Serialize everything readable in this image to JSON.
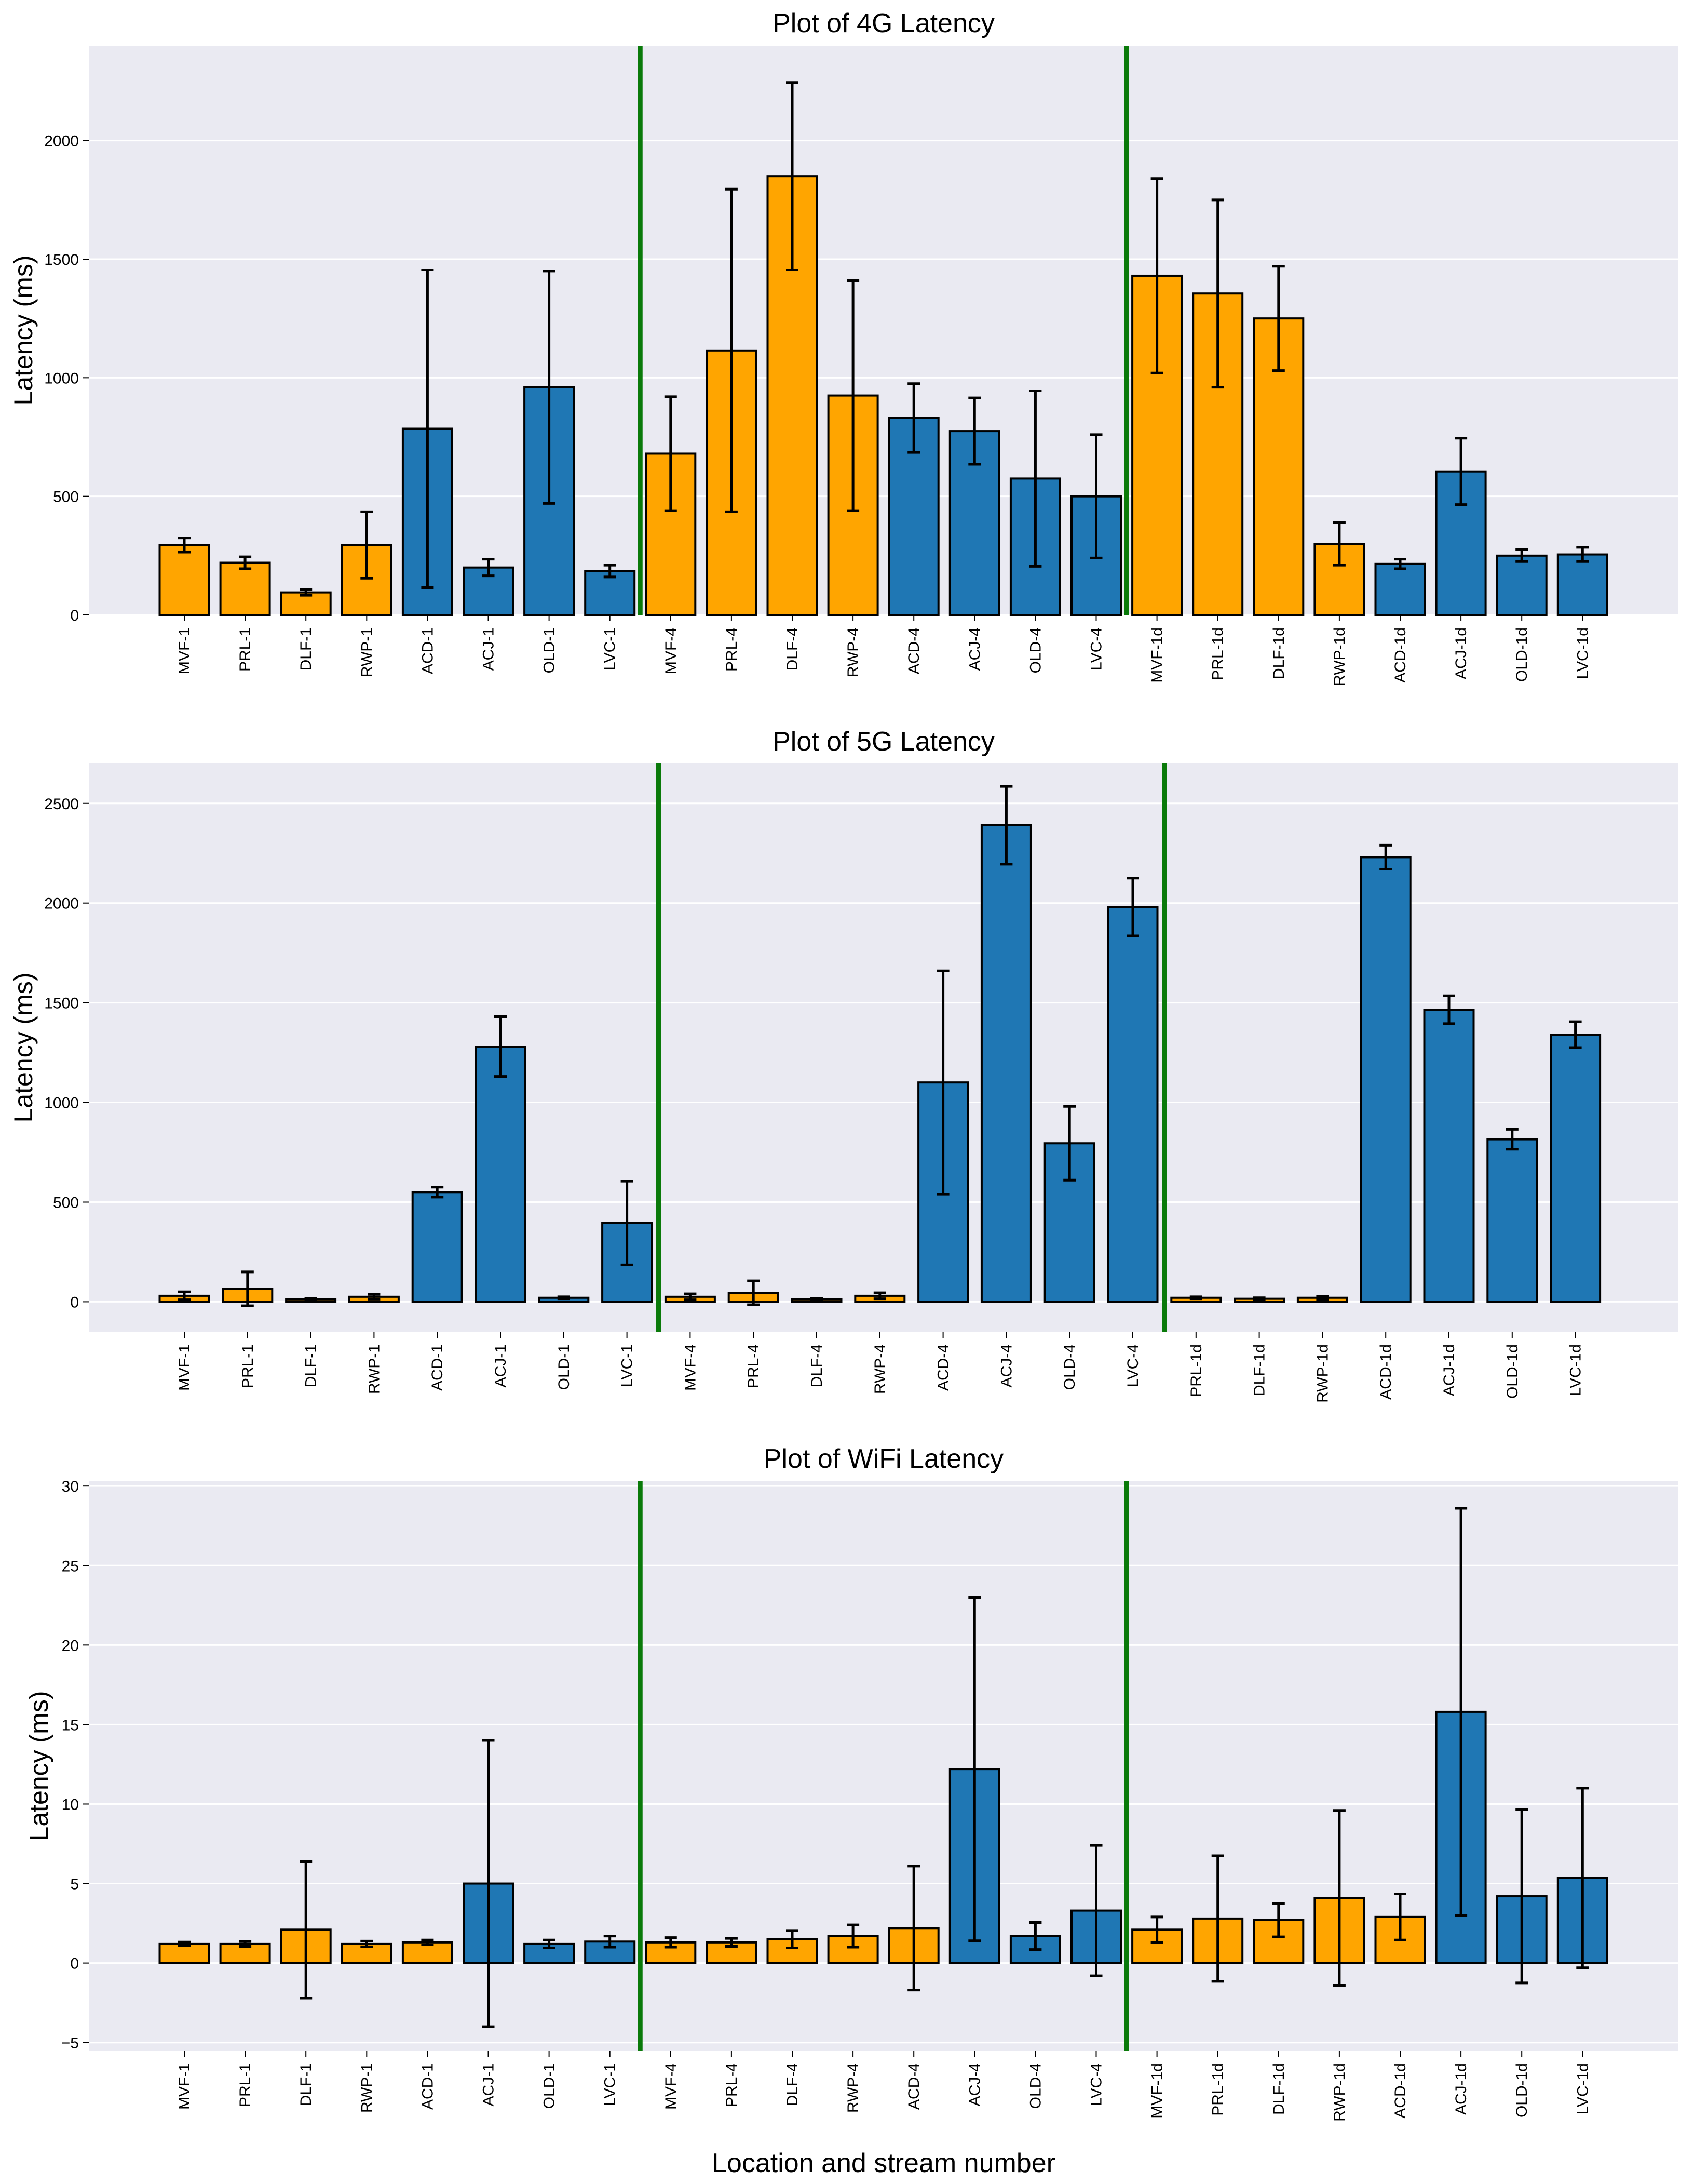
{
  "figure": {
    "xlabel": "Location and stream number"
  },
  "colors": {
    "orange": "#FFA500",
    "blue": "#1F77B4",
    "divider": "#0A7A0A",
    "panel_bg": "#EAEAF2",
    "grid": "#FFFFFF"
  },
  "chart_data": [
    {
      "type": "bar",
      "title": "Plot of 4G Latency",
      "ylabel": "Latency (ms)",
      "ylim": [
        0,
        2400
      ],
      "yticks": [
        0,
        500,
        1000,
        1500,
        2000
      ],
      "ytick_labels": [
        "0",
        "500",
        "1000",
        "1500",
        "2000"
      ],
      "dividers_after_index": [
        7,
        15
      ],
      "categories": [
        "MVF-1",
        "PRL-1",
        "DLF-1",
        "RWP-1",
        "ACD-1",
        "ACJ-1",
        "OLD-1",
        "LVC-1",
        "MVF-4",
        "PRL-4",
        "DLF-4",
        "RWP-4",
        "ACD-4",
        "ACJ-4",
        "OLD-4",
        "LVC-4",
        "MVF-1d",
        "PRL-1d",
        "DLF-1d",
        "RWP-1d",
        "ACD-1d",
        "ACJ-1d",
        "OLD-1d",
        "LVC-1d"
      ],
      "values": [
        295,
        220,
        95,
        295,
        785,
        200,
        960,
        185,
        680,
        1115,
        1850,
        925,
        830,
        775,
        575,
        500,
        1430,
        1355,
        1250,
        300,
        215,
        605,
        250,
        255
      ],
      "errors": [
        30,
        25,
        12,
        140,
        670,
        35,
        490,
        25,
        240,
        680,
        395,
        485,
        145,
        140,
        370,
        260,
        410,
        395,
        220,
        90,
        20,
        140,
        25,
        30
      ],
      "colors": [
        "orange",
        "orange",
        "orange",
        "orange",
        "blue",
        "blue",
        "blue",
        "blue",
        "orange",
        "orange",
        "orange",
        "orange",
        "blue",
        "blue",
        "blue",
        "blue",
        "orange",
        "orange",
        "orange",
        "orange",
        "blue",
        "blue",
        "blue",
        "blue"
      ]
    },
    {
      "type": "bar",
      "title": "Plot of 5G Latency",
      "ylabel": "Latency (ms)",
      "ylim": [
        -150,
        2700
      ],
      "yticks": [
        0,
        500,
        1000,
        1500,
        2000,
        2500
      ],
      "ytick_labels": [
        "0",
        "500",
        "1000",
        "1500",
        "2000",
        "2500"
      ],
      "dividers_after_index": [
        7,
        15
      ],
      "categories": [
        "MVF-1",
        "PRL-1",
        "DLF-1",
        "RWP-1",
        "ACD-1",
        "ACJ-1",
        "OLD-1",
        "LVC-1",
        "MVF-4",
        "PRL-4",
        "DLF-4",
        "RWP-4",
        "ACD-4",
        "ACJ-4",
        "OLD-4",
        "LVC-4",
        "PRL-1d",
        "DLF-1d",
        "RWP-1d",
        "ACD-1d",
        "ACJ-1d",
        "OLD-1d",
        "LVC-1d"
      ],
      "values": [
        30,
        65,
        12,
        25,
        550,
        1280,
        20,
        395,
        25,
        45,
        12,
        30,
        1100,
        2390,
        795,
        1980,
        20,
        15,
        20,
        2230,
        1465,
        815,
        1340
      ],
      "errors": [
        20,
        85,
        5,
        12,
        25,
        150,
        5,
        210,
        15,
        60,
        5,
        15,
        560,
        195,
        185,
        145,
        5,
        5,
        8,
        60,
        70,
        50,
        65
      ],
      "colors": [
        "orange",
        "orange",
        "orange",
        "orange",
        "blue",
        "blue",
        "blue",
        "blue",
        "orange",
        "orange",
        "orange",
        "orange",
        "blue",
        "blue",
        "blue",
        "blue",
        "orange",
        "orange",
        "orange",
        "blue",
        "blue",
        "blue",
        "blue"
      ]
    },
    {
      "type": "bar",
      "title": "Plot of WiFi Latency",
      "ylabel": "Latency (ms)",
      "ylim": [
        -5.5,
        30.3
      ],
      "yticks": [
        -5,
        0,
        5,
        10,
        15,
        20,
        25,
        30
      ],
      "ytick_labels": [
        "−5",
        "0",
        "5",
        "10",
        "15",
        "20",
        "25",
        "30"
      ],
      "dividers_after_index": [
        7,
        15
      ],
      "categories": [
        "MVF-1",
        "PRL-1",
        "DLF-1",
        "RWP-1",
        "ACD-1",
        "ACJ-1",
        "OLD-1",
        "LVC-1",
        "MVF-4",
        "PRL-4",
        "DLF-4",
        "RWP-4",
        "ACD-4",
        "ACJ-4",
        "OLD-4",
        "LVC-4",
        "MVF-1d",
        "PRL-1d",
        "DLF-1d",
        "RWP-1d",
        "ACD-1d",
        "ACJ-1d",
        "OLD-1d",
        "LVC-1d"
      ],
      "values": [
        1.2,
        1.2,
        2.1,
        1.2,
        1.3,
        5.0,
        1.2,
        1.35,
        1.3,
        1.3,
        1.5,
        1.7,
        2.2,
        12.2,
        1.7,
        3.3,
        2.1,
        2.8,
        2.7,
        4.1,
        2.9,
        15.8,
        4.2,
        5.35
      ],
      "errors": [
        0.12,
        0.15,
        4.3,
        0.18,
        0.15,
        9.0,
        0.25,
        0.35,
        0.3,
        0.25,
        0.55,
        0.7,
        3.9,
        10.8,
        0.85,
        4.1,
        0.8,
        3.95,
        1.05,
        5.5,
        1.45,
        12.8,
        5.45,
        5.65
      ],
      "colors": [
        "orange",
        "orange",
        "orange",
        "orange",
        "orange",
        "blue",
        "blue",
        "blue",
        "orange",
        "orange",
        "orange",
        "orange",
        "orange",
        "blue",
        "blue",
        "blue",
        "orange",
        "orange",
        "orange",
        "orange",
        "orange",
        "blue",
        "blue",
        "blue"
      ]
    }
  ]
}
